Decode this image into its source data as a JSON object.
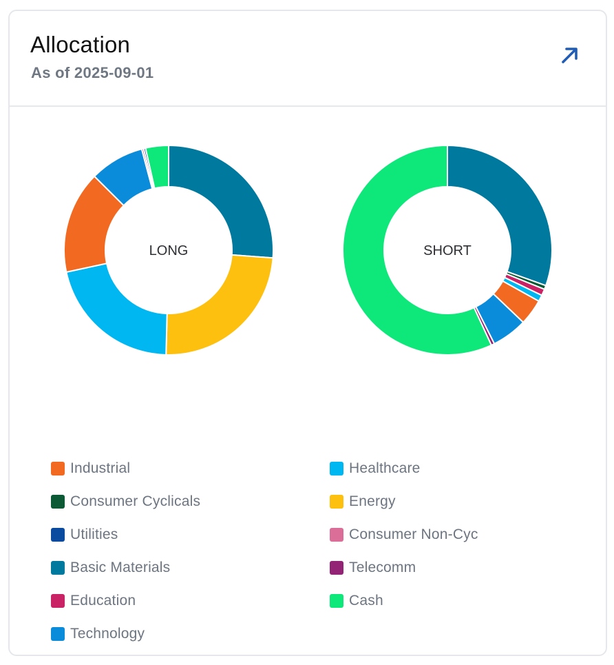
{
  "header": {
    "title": "Allocation",
    "subtitle": "As of 2025-09-01",
    "expand_icon": "arrow-up-right-icon"
  },
  "colors": {
    "Industrial": "#f26a21",
    "Consumer Cyclicals": "#0b5a35",
    "Utilities": "#0a4ba0",
    "Basic Materials": "#00799e",
    "Education": "#c92366",
    "Technology": "#0a8cdb",
    "Healthcare": "#00b7f1",
    "Energy": "#fdc00f",
    "Consumer Non-Cyc": "#db6e98",
    "Telecomm": "#932374",
    "Cash": "#0ee87a"
  },
  "legend": [
    {
      "label": "Industrial",
      "color": "#f26a21"
    },
    {
      "label": "Healthcare",
      "color": "#00b7f1"
    },
    {
      "label": "Consumer Cyclicals",
      "color": "#0b5a35"
    },
    {
      "label": "Energy",
      "color": "#fdc00f"
    },
    {
      "label": "Utilities",
      "color": "#0a4ba0"
    },
    {
      "label": "Consumer Non-Cyc",
      "color": "#db6e98"
    },
    {
      "label": "Basic Materials",
      "color": "#00799e"
    },
    {
      "label": "Telecomm",
      "color": "#932374"
    },
    {
      "label": "Education",
      "color": "#c92366"
    },
    {
      "label": "Cash",
      "color": "#0ee87a"
    },
    {
      "label": "Technology",
      "color": "#0a8cdb"
    }
  ],
  "chart_data": [
    {
      "type": "pie",
      "title": "LONG",
      "slices": [
        {
          "label": "Basic Materials",
          "value": 26.5
        },
        {
          "label": "Energy",
          "value": 24.5
        },
        {
          "label": "Healthcare",
          "value": 21.5
        },
        {
          "label": "Industrial",
          "value": 16.0
        },
        {
          "label": "Technology",
          "value": 8.5
        },
        {
          "label": "Consumer Non-Cyc",
          "value": 0.3
        },
        {
          "label": "Utilities",
          "value": 0.3
        },
        {
          "label": "Cash",
          "value": 3.6
        }
      ]
    },
    {
      "type": "pie",
      "title": "SHORT",
      "slices": [
        {
          "label": "Basic Materials",
          "value": 30.5
        },
        {
          "label": "Consumer Cyclicals",
          "value": 0.6
        },
        {
          "label": "Education",
          "value": 1.0
        },
        {
          "label": "Healthcare",
          "value": 1.0
        },
        {
          "label": "Industrial",
          "value": 4.0
        },
        {
          "label": "Technology",
          "value": 5.5
        },
        {
          "label": "Telecomm",
          "value": 0.5
        },
        {
          "label": "Cash",
          "value": 56.9
        }
      ]
    }
  ]
}
